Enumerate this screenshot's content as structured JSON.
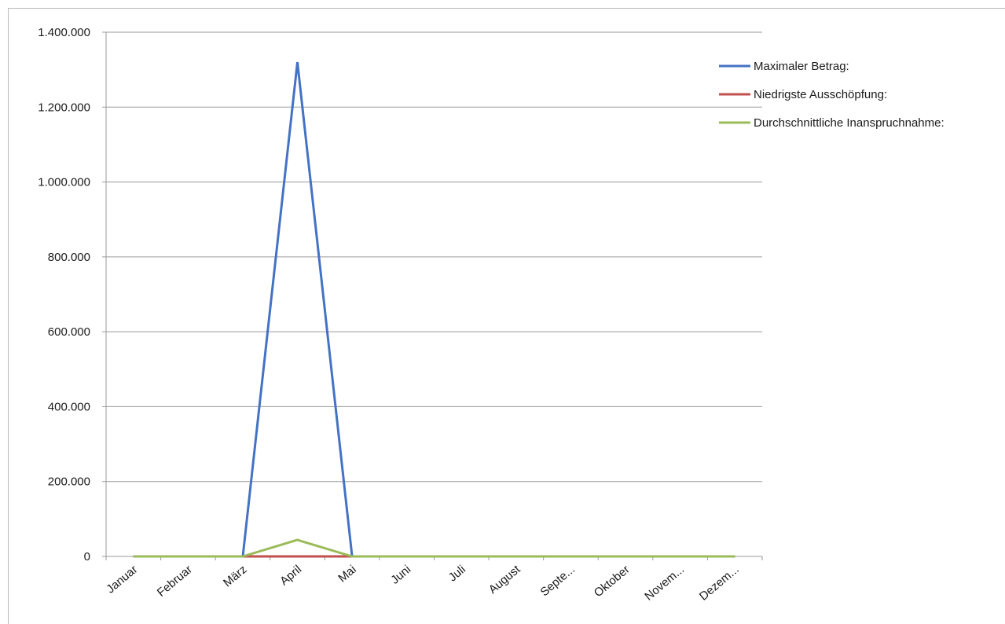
{
  "chart_data": {
    "type": "line",
    "categories": [
      "Januar",
      "Februar",
      "März",
      "April",
      "Mai",
      "Juni",
      "Juli",
      "August",
      "Septe...",
      "Oktober",
      "Novem...",
      "Dezem..."
    ],
    "series": [
      {
        "name": "Maximaler Betrag:",
        "color": "#4472c4",
        "values": [
          0,
          0,
          0,
          1320000,
          0,
          0,
          0,
          0,
          0,
          0,
          0,
          0
        ]
      },
      {
        "name": "Niedrigste Ausschöpfung:",
        "color": "#c0504d",
        "values": [
          0,
          0,
          0,
          0,
          0,
          0,
          0,
          0,
          0,
          0,
          0,
          0
        ]
      },
      {
        "name": "Durchschnittliche Inanspruchnahme:",
        "color": "#9bbb59",
        "values": [
          0,
          0,
          0,
          44000,
          0,
          0,
          0,
          0,
          0,
          0,
          0,
          0
        ]
      }
    ],
    "yticks": [
      "0",
      "200.000",
      "400.000",
      "600.000",
      "800.000",
      "1.000.000",
      "1.200.000",
      "1.400.000"
    ],
    "ylim": [
      0,
      1400000
    ],
    "grid": true,
    "legend_position": "right",
    "title": "",
    "xlabel": "",
    "ylabel": ""
  }
}
